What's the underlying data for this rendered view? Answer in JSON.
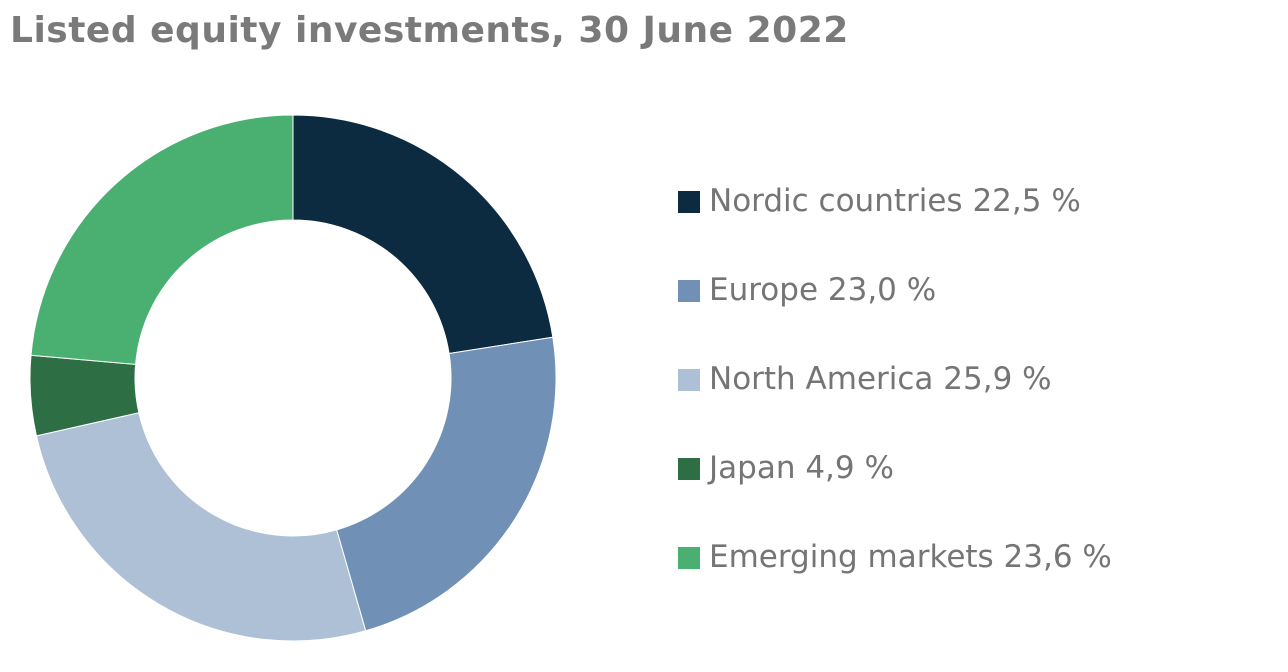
{
  "chart_data": {
    "type": "pie",
    "title": "Listed equity investments, 30 June 2022",
    "series": [
      {
        "name": "Nordic countries",
        "value": 22.5,
        "label": "Nordic countries 22,5 %",
        "color": "#0c2a40"
      },
      {
        "name": "Europe",
        "value": 23.0,
        "label": "Europe 23,0 %",
        "color": "#7091b5"
      },
      {
        "name": "North America",
        "value": 25.9,
        "label": "North America 25,9 %",
        "color": "#adc0d5"
      },
      {
        "name": "Japan",
        "value": 4.9,
        "label": "Japan 4,9 %",
        "color": "#2e6e45"
      },
      {
        "name": "Emerging markets",
        "value": 23.6,
        "label": "Emerging markets 23,6 %",
        "color": "#4ab072"
      }
    ],
    "legend_position": "right",
    "donut": true
  }
}
